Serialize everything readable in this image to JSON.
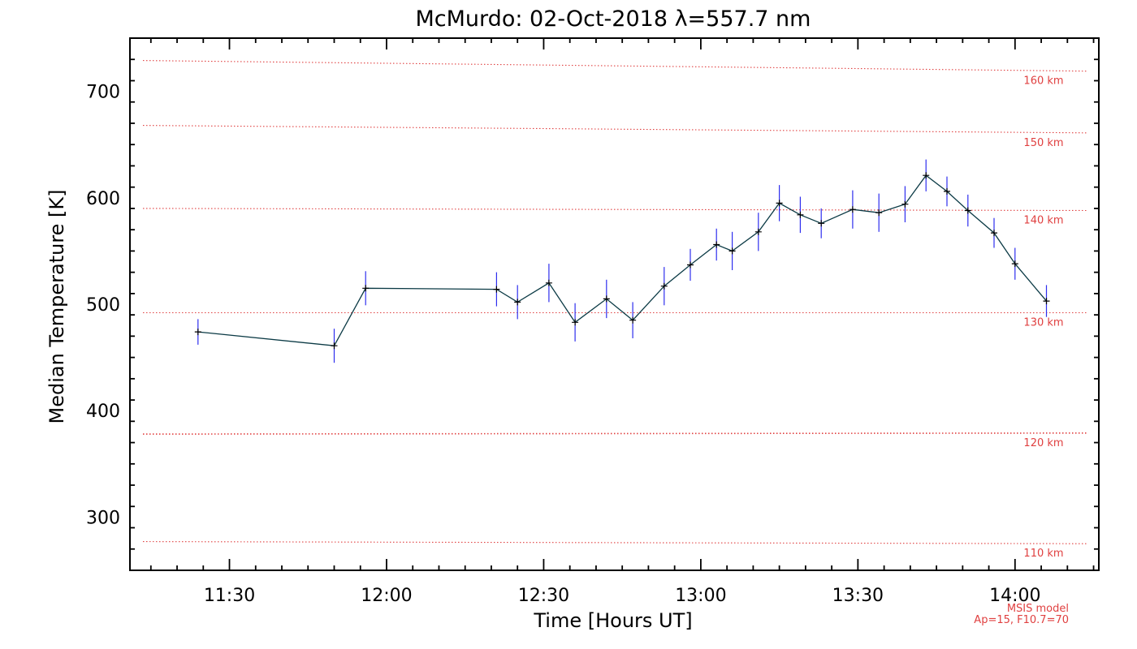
{
  "chart_data": {
    "type": "line",
    "title": "McMurdo: 02-Oct-2018 λ=557.7 nm",
    "xlabel": "Time [Hours UT]",
    "ylabel": "Median Temperature [K]",
    "xlim": [
      "11:11",
      "14:16"
    ],
    "ylim": [
      250,
      750
    ],
    "x_ticks": [
      "11:30",
      "12:00",
      "12:30",
      "13:00",
      "13:30",
      "14:00"
    ],
    "y_ticks": [
      300,
      400,
      500,
      600,
      700
    ],
    "grid": false,
    "series": [
      {
        "x": [
          "11:24",
          "11:50",
          "11:56",
          "12:21",
          "12:25",
          "12:31",
          "12:36",
          "12:42",
          "12:47",
          "12:53",
          "12:58",
          "13:03",
          "13:06",
          "13:11",
          "13:15",
          "13:19",
          "13:23",
          "13:29",
          "13:34",
          "13:39",
          "13:43",
          "13:47",
          "13:51",
          "13:56",
          "14:00",
          "14:06"
        ],
        "y": [
          474,
          461,
          515,
          514,
          502,
          520,
          483,
          505,
          485,
          517,
          537,
          556,
          550,
          568,
          595,
          584,
          576,
          589,
          586,
          594,
          621,
          606,
          588,
          567,
          538,
          503
        ],
        "error": [
          12,
          16,
          16,
          16,
          16,
          18,
          18,
          18,
          17,
          18,
          15,
          15,
          18,
          18,
          17,
          17,
          14,
          18,
          18,
          17,
          15,
          14,
          15,
          14,
          15,
          15
        ]
      }
    ],
    "reference_lines": [
      {
        "label": "160 km",
        "y_start": 729,
        "y_end": 719
      },
      {
        "label": "150 km",
        "y_start": 668,
        "y_end": 661
      },
      {
        "label": "140 km",
        "y_start": 590,
        "y_end": 588
      },
      {
        "label": "130 km",
        "y_start": 492,
        "y_end": 492
      },
      {
        "label": "120 km",
        "y_start": 378,
        "y_end": 379
      },
      {
        "label": "110 km",
        "y_start": 277,
        "y_end": 275
      }
    ],
    "notes": [
      "MSIS model",
      "Ap=15, F10.7=70"
    ],
    "colors": {
      "line": "#0b3a45",
      "error_bar": "#2e2eee",
      "marker": "#000000",
      "reference": "#e04040",
      "axis": "#000000"
    }
  }
}
